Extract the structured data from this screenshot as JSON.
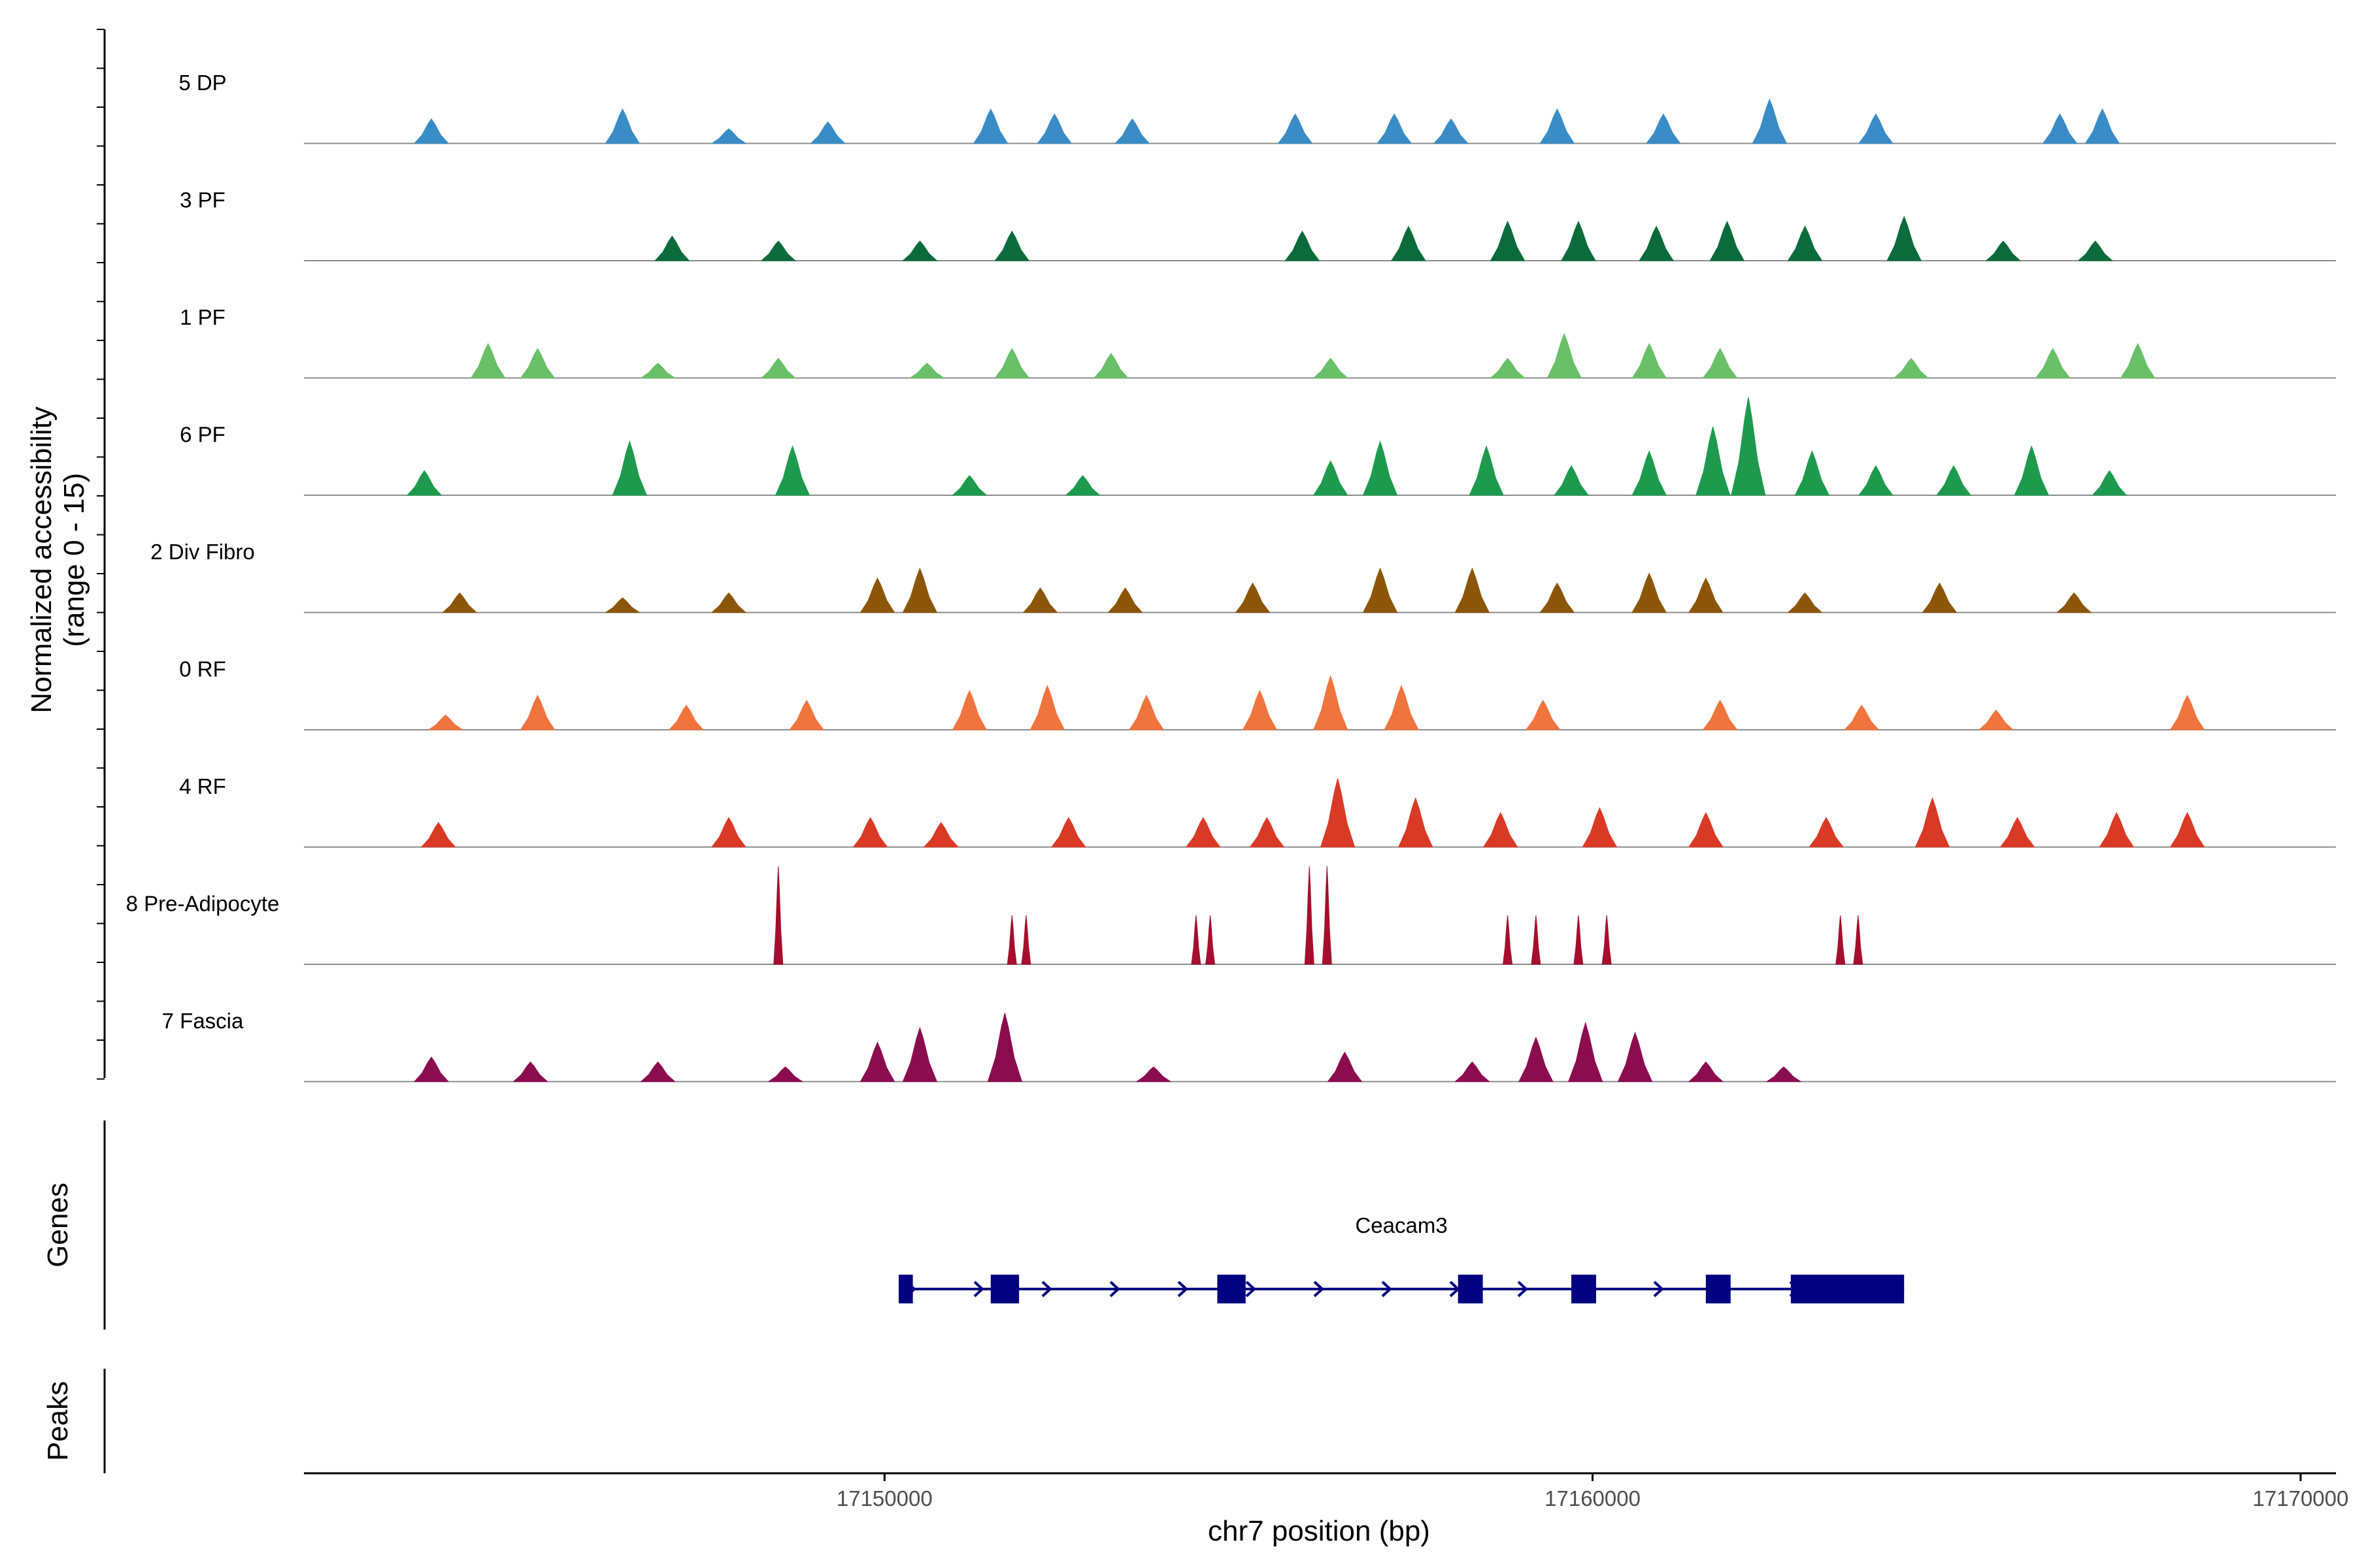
{
  "chart_data": {
    "type": "coverage",
    "y_axis_title_line1": "Normalized accessibility",
    "y_axis_title_line2": "(range 0 - 15)",
    "y_range": [
      0,
      15
    ],
    "x_axis_title": "chr7 position (bp)",
    "x_range": [
      17141800,
      17170500
    ],
    "x_ticks": [
      17150000,
      17160000,
      17170000
    ],
    "x_tick_labels": [
      "17150000",
      "17160000",
      "17170000"
    ],
    "tracks": [
      {
        "name": "5 DP",
        "color": "#3a8cc6",
        "peaks": [
          [
            17143600,
            0.25
          ],
          [
            17146300,
            0.35
          ],
          [
            17147800,
            0.15
          ],
          [
            17149200,
            0.22
          ],
          [
            17151500,
            0.35
          ],
          [
            17152400,
            0.3
          ],
          [
            17153500,
            0.25
          ],
          [
            17155800,
            0.3
          ],
          [
            17157200,
            0.3
          ],
          [
            17158000,
            0.25
          ],
          [
            17159500,
            0.35
          ],
          [
            17161000,
            0.3
          ],
          [
            17162500,
            0.45
          ],
          [
            17164000,
            0.3
          ],
          [
            17166600,
            0.3
          ],
          [
            17167200,
            0.35
          ]
        ]
      },
      {
        "name": "3 PF",
        "color": "#0b6b3a",
        "peaks": [
          [
            17147000,
            0.25
          ],
          [
            17148500,
            0.2
          ],
          [
            17150500,
            0.2
          ],
          [
            17151800,
            0.3
          ],
          [
            17155900,
            0.3
          ],
          [
            17157400,
            0.35
          ],
          [
            17158800,
            0.4
          ],
          [
            17159800,
            0.4
          ],
          [
            17160900,
            0.35
          ],
          [
            17161900,
            0.4
          ],
          [
            17163000,
            0.35
          ],
          [
            17164400,
            0.45
          ],
          [
            17165800,
            0.2
          ],
          [
            17167100,
            0.2
          ]
        ]
      },
      {
        "name": "1 PF",
        "color": "#69c068",
        "peaks": [
          [
            17144400,
            0.35
          ],
          [
            17145100,
            0.3
          ],
          [
            17146800,
            0.15
          ],
          [
            17148500,
            0.2
          ],
          [
            17150600,
            0.15
          ],
          [
            17151800,
            0.3
          ],
          [
            17153200,
            0.25
          ],
          [
            17156300,
            0.2
          ],
          [
            17158800,
            0.2
          ],
          [
            17159600,
            0.45
          ],
          [
            17160800,
            0.35
          ],
          [
            17161800,
            0.3
          ],
          [
            17164500,
            0.2
          ],
          [
            17166500,
            0.3
          ],
          [
            17167700,
            0.35
          ]
        ]
      },
      {
        "name": "6 PF",
        "color": "#1e9a4e",
        "peaks": [
          [
            17143500,
            0.25
          ],
          [
            17146400,
            0.55
          ],
          [
            17148700,
            0.5
          ],
          [
            17151200,
            0.2
          ],
          [
            17152800,
            0.2
          ],
          [
            17156300,
            0.35
          ],
          [
            17157000,
            0.55
          ],
          [
            17158500,
            0.5
          ],
          [
            17159700,
            0.3
          ],
          [
            17160800,
            0.45
          ],
          [
            17161700,
            0.7
          ],
          [
            17162200,
            1.0
          ],
          [
            17163100,
            0.45
          ],
          [
            17164000,
            0.3
          ],
          [
            17165100,
            0.3
          ],
          [
            17166200,
            0.5
          ],
          [
            17167300,
            0.25
          ]
        ]
      },
      {
        "name": "2 Div Fibro",
        "color": "#8c5608",
        "peaks": [
          [
            17144000,
            0.2
          ],
          [
            17146300,
            0.15
          ],
          [
            17147800,
            0.2
          ],
          [
            17149900,
            0.35
          ],
          [
            17150500,
            0.45
          ],
          [
            17152200,
            0.25
          ],
          [
            17153400,
            0.25
          ],
          [
            17155200,
            0.3
          ],
          [
            17157000,
            0.45
          ],
          [
            17158300,
            0.45
          ],
          [
            17159500,
            0.3
          ],
          [
            17160800,
            0.4
          ],
          [
            17161600,
            0.35
          ],
          [
            17163000,
            0.2
          ],
          [
            17164900,
            0.3
          ],
          [
            17166800,
            0.2
          ]
        ]
      },
      {
        "name": "0 RF",
        "color": "#f0743e",
        "peaks": [
          [
            17143800,
            0.15
          ],
          [
            17145100,
            0.35
          ],
          [
            17147200,
            0.25
          ],
          [
            17148900,
            0.3
          ],
          [
            17151200,
            0.4
          ],
          [
            17152300,
            0.45
          ],
          [
            17153700,
            0.35
          ],
          [
            17155300,
            0.4
          ],
          [
            17156300,
            0.55
          ],
          [
            17157300,
            0.45
          ],
          [
            17159300,
            0.3
          ],
          [
            17161800,
            0.3
          ],
          [
            17163800,
            0.25
          ],
          [
            17165700,
            0.2
          ],
          [
            17168400,
            0.35
          ]
        ]
      },
      {
        "name": "4 RF",
        "color": "#d93a26",
        "peaks": [
          [
            17143700,
            0.25
          ],
          [
            17147800,
            0.3
          ],
          [
            17149800,
            0.3
          ],
          [
            17150800,
            0.25
          ],
          [
            17152600,
            0.3
          ],
          [
            17154500,
            0.3
          ],
          [
            17155400,
            0.3
          ],
          [
            17156400,
            0.7
          ],
          [
            17157500,
            0.5
          ],
          [
            17158700,
            0.35
          ],
          [
            17160100,
            0.4
          ],
          [
            17161600,
            0.35
          ],
          [
            17163300,
            0.3
          ],
          [
            17164800,
            0.5
          ],
          [
            17166000,
            0.3
          ],
          [
            17167400,
            0.35
          ],
          [
            17168400,
            0.35
          ]
        ]
      },
      {
        "name": "8 Pre-Adipocyte",
        "color": "#a50f2d",
        "peaks": [
          [
            17148500,
            1.0
          ],
          [
            17151800,
            0.5
          ],
          [
            17152000,
            0.5
          ],
          [
            17154400,
            0.5
          ],
          [
            17154600,
            0.5
          ],
          [
            17156000,
            1.0
          ],
          [
            17156250,
            1.0
          ],
          [
            17158800,
            0.5
          ],
          [
            17159200,
            0.5
          ],
          [
            17159800,
            0.5
          ],
          [
            17160200,
            0.5
          ],
          [
            17163500,
            0.5
          ],
          [
            17163750,
            0.5
          ]
        ]
      },
      {
        "name": "7 Fascia",
        "color": "#8b0d4f",
        "peaks": [
          [
            17143600,
            0.25
          ],
          [
            17145000,
            0.2
          ],
          [
            17146800,
            0.2
          ],
          [
            17148600,
            0.15
          ],
          [
            17149900,
            0.4
          ],
          [
            17150500,
            0.55
          ],
          [
            17151700,
            0.7
          ],
          [
            17153800,
            0.15
          ],
          [
            17156500,
            0.3
          ],
          [
            17158300,
            0.2
          ],
          [
            17159200,
            0.45
          ],
          [
            17159900,
            0.6
          ],
          [
            17160600,
            0.5
          ],
          [
            17161600,
            0.2
          ],
          [
            17162700,
            0.15
          ]
        ]
      }
    ]
  },
  "genes": {
    "panel_label": "Genes",
    "gene_name": "Ceacam3",
    "color": "#000080",
    "strand": "+",
    "start": 17150200,
    "end": 17164400,
    "exons": [
      [
        17150200,
        17150400
      ],
      [
        17151500,
        17151900
      ],
      [
        17154700,
        17155100
      ],
      [
        17158100,
        17158450
      ],
      [
        17159700,
        17160050
      ],
      [
        17161600,
        17161950
      ],
      [
        17162800,
        17164400
      ]
    ]
  },
  "peaks_panel": {
    "panel_label": "Peaks"
  }
}
